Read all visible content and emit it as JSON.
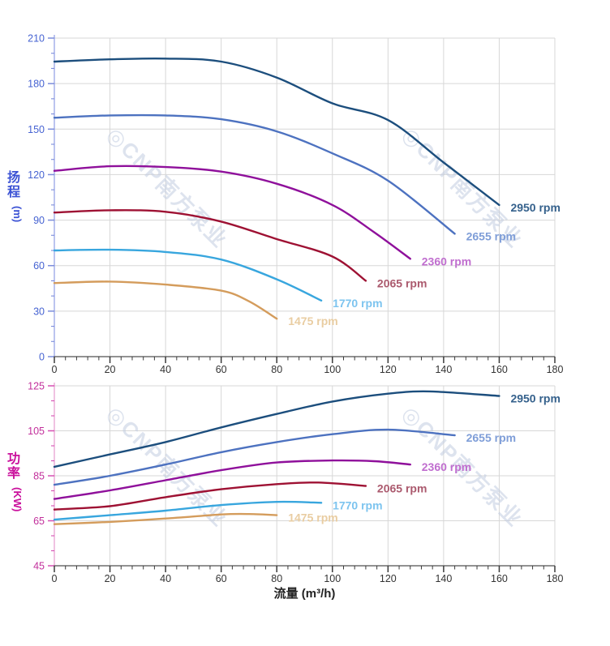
{
  "watermark": {
    "logo_glyph": "◎",
    "text": "CNP南方泵业",
    "color": "#c3cde1",
    "opacity": 0.55
  },
  "chart_data": [
    {
      "name": "head-flow-chart",
      "type": "line",
      "title": "",
      "ylabel": "扬程",
      "ylabel_unit": "(m)",
      "ylabel_color": "#3b52d4",
      "xlabel": "",
      "xlabel_color": "#222222",
      "grid": true,
      "grid_color": "#d7d7d7",
      "axes": {
        "x": {
          "min": 0,
          "max": 180,
          "major_step": 20,
          "minor_per_major": 5,
          "label_color": "#333333",
          "tick_color": "#3a3a3a",
          "spine_color": "#6e6e6e"
        },
        "y": {
          "min": 0,
          "max": 210,
          "major_step": 30,
          "minor_per_major": 3,
          "label_color": "#4663d2",
          "tick_color": "#7b8cdb",
          "spine_color": "#9fabe8"
        }
      },
      "series": [
        {
          "name": "2950 rpm",
          "color": "#1c4e7d",
          "label_color": "#35618c",
          "x": [
            0,
            20,
            40,
            60,
            80,
            100,
            120,
            140,
            160
          ],
          "y": [
            194.5,
            196,
            196.5,
            194.5,
            184,
            167,
            156,
            128,
            100
          ]
        },
        {
          "name": "2655 rpm",
          "color": "#4d72c0",
          "label_color": "#7f9ed8",
          "x": [
            0,
            20,
            40,
            60,
            80,
            100,
            120,
            144
          ],
          "y": [
            157.5,
            159,
            159,
            156.5,
            148.5,
            134,
            116,
            81
          ]
        },
        {
          "name": "2360 rpm",
          "color": "#8f109b",
          "label_color": "#c06ecf",
          "x": [
            0,
            20,
            40,
            60,
            80,
            100,
            115,
            128
          ],
          "y": [
            122.5,
            125.5,
            125,
            122,
            114,
            100,
            82,
            64.5
          ]
        },
        {
          "name": "2065 rpm",
          "color": "#9e1133",
          "label_color": "#ab5a6e",
          "x": [
            0,
            20,
            40,
            60,
            80,
            100,
            112
          ],
          "y": [
            95,
            96.5,
            95.5,
            89,
            77.5,
            66,
            50
          ]
        },
        {
          "name": "1770 rpm",
          "color": "#38a6de",
          "label_color": "#7dc4ef",
          "x": [
            0,
            20,
            40,
            60,
            80,
            96
          ],
          "y": [
            70,
            70.5,
            69,
            64,
            51,
            37
          ]
        },
        {
          "name": "1475 rpm",
          "color": "#d49c5c",
          "label_color": "#e9cda2",
          "x": [
            0,
            20,
            40,
            60,
            70,
            80
          ],
          "y": [
            48.5,
            49.5,
            47.5,
            43.5,
            36.5,
            25
          ]
        }
      ]
    },
    {
      "name": "power-flow-chart",
      "type": "line",
      "title": "",
      "ylabel": "功率",
      "ylabel_unit": "(KW)",
      "ylabel_color": "#ca109c",
      "xlabel": "流量 (m³/h)",
      "xlabel_color": "#222222",
      "grid": true,
      "grid_color": "#d7d7d7",
      "axes": {
        "x": {
          "min": 0,
          "max": 180,
          "major_step": 20,
          "minor_per_major": 5,
          "label_color": "#333333",
          "tick_color": "#3a3a3a",
          "spine_color": "#6e6e6e"
        },
        "y": {
          "min": 45,
          "max": 125,
          "major_step": 20,
          "minor_per_major": 3,
          "label_color": "#c22f9b",
          "tick_color": "#d650b2",
          "spine_color": "#eaa8d6"
        }
      },
      "series": [
        {
          "name": "2950 rpm",
          "color": "#1c4e7d",
          "label_color": "#35618c",
          "x": [
            0,
            20,
            40,
            60,
            80,
            100,
            120,
            135,
            160
          ],
          "y": [
            89,
            94.5,
            100,
            106.5,
            112.5,
            118,
            121.5,
            122.5,
            120.5
          ]
        },
        {
          "name": "2655 rpm",
          "color": "#4d72c0",
          "label_color": "#7f9ed8",
          "x": [
            0,
            20,
            40,
            60,
            80,
            100,
            120,
            144
          ],
          "y": [
            81,
            85,
            90,
            95.5,
            100,
            103.5,
            105.5,
            103
          ]
        },
        {
          "name": "2360 rpm",
          "color": "#8f109b",
          "label_color": "#c06ecf",
          "x": [
            0,
            20,
            40,
            60,
            80,
            100,
            115,
            128
          ],
          "y": [
            74.7,
            78.5,
            83,
            87.5,
            90.9,
            91.8,
            91.5,
            90
          ]
        },
        {
          "name": "2065 rpm",
          "color": "#9e1133",
          "label_color": "#ab5a6e",
          "x": [
            0,
            20,
            40,
            60,
            80,
            95,
            112
          ],
          "y": [
            70,
            71.5,
            75.5,
            79,
            81.3,
            82,
            80.5
          ]
        },
        {
          "name": "1770 rpm",
          "color": "#38a6de",
          "label_color": "#7dc4ef",
          "x": [
            0,
            20,
            40,
            60,
            80,
            96
          ],
          "y": [
            65.5,
            67.5,
            69.5,
            72,
            73.4,
            73
          ]
        },
        {
          "name": "1475 rpm",
          "color": "#d49c5c",
          "label_color": "#e9cda2",
          "x": [
            0,
            20,
            40,
            60,
            70,
            80
          ],
          "y": [
            63.5,
            64.5,
            66,
            67.8,
            68,
            67.5
          ]
        }
      ]
    }
  ]
}
